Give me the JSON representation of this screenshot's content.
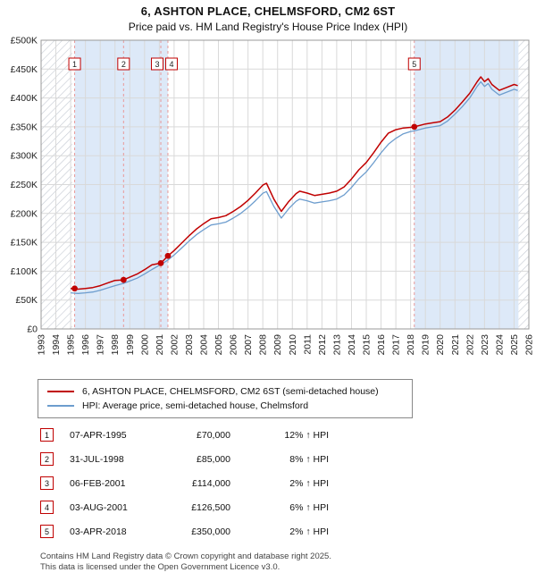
{
  "header": {
    "title": "6, ASHTON PLACE, CHELMSFORD, CM2 6ST",
    "subtitle": "Price paid vs. HM Land Registry's House Price Index (HPI)"
  },
  "legend": {
    "property_label": "6, ASHTON PLACE, CHELMSFORD, CM2 6ST (semi-detached house)",
    "hpi_label": "HPI: Average price, semi-detached house, Chelmsford"
  },
  "transactions": [
    {
      "n": "1",
      "date": "07-APR-1995",
      "price": "£70,000",
      "hpi": "12% ↑ HPI"
    },
    {
      "n": "2",
      "date": "31-JUL-1998",
      "price": "£85,000",
      "hpi": "8% ↑ HPI"
    },
    {
      "n": "3",
      "date": "06-FEB-2001",
      "price": "£114,000",
      "hpi": "2% ↑ HPI"
    },
    {
      "n": "4",
      "date": "03-AUG-2001",
      "price": "£126,500",
      "hpi": "6% ↑ HPI"
    },
    {
      "n": "5",
      "date": "03-APR-2018",
      "price": "£350,000",
      "hpi": "2% ↑ HPI"
    }
  ],
  "footer": {
    "line1": "Contains HM Land Registry data © Crown copyright and database right 2025.",
    "line2": "This data is licensed under the Open Government Licence v3.0."
  },
  "chart_data": {
    "type": "line",
    "title": "6, ASHTON PLACE, CHELMSFORD, CM2 6ST — Price paid vs. HPI",
    "x_range": [
      1993,
      2026
    ],
    "y_range": [
      0,
      500000
    ],
    "x_ticks": [
      1993,
      1994,
      1995,
      1996,
      1997,
      1998,
      1999,
      2000,
      2001,
      2002,
      2003,
      2004,
      2005,
      2006,
      2007,
      2008,
      2009,
      2010,
      2011,
      2012,
      2013,
      2014,
      2015,
      2016,
      2017,
      2018,
      2019,
      2020,
      2021,
      2022,
      2023,
      2024,
      2025,
      2026
    ],
    "y_ticks": [
      {
        "v": 0,
        "label": "£0"
      },
      {
        "v": 50000,
        "label": "£50K"
      },
      {
        "v": 100000,
        "label": "£100K"
      },
      {
        "v": 150000,
        "label": "£150K"
      },
      {
        "v": 200000,
        "label": "£200K"
      },
      {
        "v": 250000,
        "label": "£250K"
      },
      {
        "v": 300000,
        "label": "£300K"
      },
      {
        "v": 350000,
        "label": "£350K"
      },
      {
        "v": 400000,
        "label": "£400K"
      },
      {
        "v": 450000,
        "label": "£450K"
      },
      {
        "v": 500000,
        "label": "£500K"
      }
    ],
    "colors": {
      "property": "#c00000",
      "hpi": "#6d9dce",
      "shade": "#dde9f8",
      "hatch": "#c4c9d2",
      "grid": "#d9d9d9",
      "border": "#999999",
      "sale_line": "#e89999",
      "marker": "#c00000",
      "box_border": "#c00000",
      "axis_text": "#222222"
    },
    "hatch_regions": [
      [
        1993,
        1995.1
      ],
      [
        2025.3,
        2026
      ]
    ],
    "shade_regions": [
      [
        1995.27,
        2001.58
      ],
      [
        2018.25,
        2025.3
      ]
    ],
    "sales": [
      {
        "n": "1",
        "x": 1995.27,
        "y": 70000,
        "dx": 0
      },
      {
        "n": "2",
        "x": 1998.58,
        "y": 85000,
        "dx": 0
      },
      {
        "n": "3",
        "x": 2001.1,
        "y": 114000,
        "dx": -4
      },
      {
        "n": "4",
        "x": 2001.58,
        "y": 126500,
        "dx": 4
      },
      {
        "n": "5",
        "x": 2018.25,
        "y": 350000,
        "dx": 0
      }
    ],
    "series": [
      {
        "name": "6, ASHTON PLACE, CHELMSFORD, CM2 6ST (semi-detached house)",
        "color": "#c00000",
        "width": 1.5,
        "points": [
          [
            1995.0,
            70000
          ],
          [
            1995.5,
            68900
          ],
          [
            1996.0,
            70000
          ],
          [
            1996.5,
            71700
          ],
          [
            1997.0,
            75000
          ],
          [
            1997.5,
            79500
          ],
          [
            1998.0,
            84000
          ],
          [
            1998.58,
            85000
          ],
          [
            1999.0,
            89600
          ],
          [
            1999.5,
            95000
          ],
          [
            2000.0,
            102600
          ],
          [
            2000.5,
            111200
          ],
          [
            2001.1,
            114000
          ],
          [
            2001.58,
            126500
          ],
          [
            2002.0,
            135700
          ],
          [
            2002.5,
            148400
          ],
          [
            2003.0,
            161100
          ],
          [
            2003.5,
            172800
          ],
          [
            2004.0,
            182300
          ],
          [
            2004.5,
            190800
          ],
          [
            2005.0,
            192900
          ],
          [
            2005.5,
            196100
          ],
          [
            2006.0,
            203500
          ],
          [
            2006.5,
            212000
          ],
          [
            2007.0,
            222600
          ],
          [
            2007.5,
            235300
          ],
          [
            2008.0,
            249100
          ],
          [
            2008.25,
            252300
          ],
          [
            2008.75,
            224700
          ],
          [
            2009.25,
            203500
          ],
          [
            2009.75,
            220500
          ],
          [
            2010.25,
            234300
          ],
          [
            2010.5,
            238500
          ],
          [
            2011.0,
            235300
          ],
          [
            2011.5,
            231100
          ],
          [
            2012.0,
            233200
          ],
          [
            2012.5,
            235300
          ],
          [
            2013.0,
            238500
          ],
          [
            2013.5,
            245900
          ],
          [
            2014.0,
            259700
          ],
          [
            2014.5,
            275600
          ],
          [
            2015.0,
            288300
          ],
          [
            2015.5,
            305300
          ],
          [
            2016.0,
            323300
          ],
          [
            2016.5,
            339200
          ],
          [
            2017.0,
            345000
          ],
          [
            2017.5,
            348000
          ],
          [
            2018.0,
            349000
          ],
          [
            2018.25,
            350000
          ],
          [
            2019.0,
            355000
          ],
          [
            2019.5,
            357000
          ],
          [
            2020.0,
            359000
          ],
          [
            2020.5,
            367000
          ],
          [
            2021.0,
            379000
          ],
          [
            2021.5,
            393000
          ],
          [
            2022.0,
            408000
          ],
          [
            2022.5,
            428000
          ],
          [
            2022.75,
            436600
          ],
          [
            2023.0,
            428400
          ],
          [
            2023.25,
            433500
          ],
          [
            2023.5,
            423300
          ],
          [
            2024.0,
            413100
          ],
          [
            2024.5,
            418200
          ],
          [
            2025.0,
            423300
          ],
          [
            2025.25,
            421300
          ]
        ]
      },
      {
        "name": "HPI: Average price, semi-detached house, Chelmsford",
        "color": "#6d9dce",
        "width": 1.3,
        "points": [
          [
            1995.0,
            62500
          ],
          [
            1995.5,
            61500
          ],
          [
            1996.0,
            62500
          ],
          [
            1996.5,
            64000
          ],
          [
            1997.0,
            67000
          ],
          [
            1997.5,
            71000
          ],
          [
            1998.0,
            75000
          ],
          [
            1998.58,
            79000
          ],
          [
            1999.0,
            83000
          ],
          [
            1999.5,
            88000
          ],
          [
            2000.0,
            95000
          ],
          [
            2000.5,
            103000
          ],
          [
            2001.1,
            111800
          ],
          [
            2001.58,
            119300
          ],
          [
            2002.0,
            128000
          ],
          [
            2002.5,
            140000
          ],
          [
            2003.0,
            152000
          ],
          [
            2003.5,
            163000
          ],
          [
            2004.0,
            172000
          ],
          [
            2004.5,
            180000
          ],
          [
            2005.0,
            182000
          ],
          [
            2005.5,
            185000
          ],
          [
            2006.0,
            192000
          ],
          [
            2006.5,
            200000
          ],
          [
            2007.0,
            210000
          ],
          [
            2007.5,
            222000
          ],
          [
            2008.0,
            235000
          ],
          [
            2008.25,
            238000
          ],
          [
            2008.75,
            212000
          ],
          [
            2009.25,
            192000
          ],
          [
            2009.75,
            208000
          ],
          [
            2010.25,
            221000
          ],
          [
            2010.5,
            225000
          ],
          [
            2011.0,
            222000
          ],
          [
            2011.5,
            218000
          ],
          [
            2012.0,
            220000
          ],
          [
            2012.5,
            222000
          ],
          [
            2013.0,
            225000
          ],
          [
            2013.5,
            232000
          ],
          [
            2014.0,
            245000
          ],
          [
            2014.5,
            260000
          ],
          [
            2015.0,
            272000
          ],
          [
            2015.5,
            288000
          ],
          [
            2016.0,
            305000
          ],
          [
            2016.5,
            320000
          ],
          [
            2017.0,
            330000
          ],
          [
            2017.5,
            338000
          ],
          [
            2018.0,
            342000
          ],
          [
            2018.25,
            343000
          ],
          [
            2019.0,
            348000
          ],
          [
            2019.5,
            350000
          ],
          [
            2020.0,
            352000
          ],
          [
            2020.5,
            360000
          ],
          [
            2021.0,
            372000
          ],
          [
            2021.5,
            385000
          ],
          [
            2022.0,
            400000
          ],
          [
            2022.5,
            420000
          ],
          [
            2022.75,
            428000
          ],
          [
            2023.0,
            420000
          ],
          [
            2023.25,
            425000
          ],
          [
            2023.5,
            415000
          ],
          [
            2024.0,
            405000
          ],
          [
            2024.5,
            410000
          ],
          [
            2025.0,
            415000
          ],
          [
            2025.25,
            413000
          ]
        ]
      }
    ]
  }
}
